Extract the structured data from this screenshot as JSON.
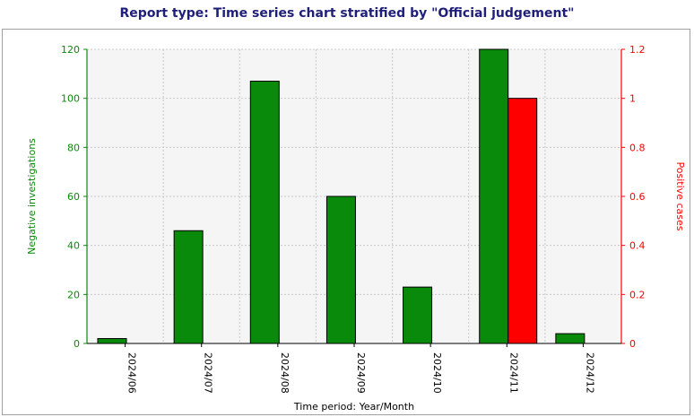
{
  "report_title": "Report type: Time series chart stratified by \"Official judgement\"",
  "colors": {
    "title": "#1f1f7a",
    "negative": "#0a8a0a",
    "positive": "#ff0000",
    "grid": "#c8c8c8",
    "plot_bg": "#f5f5f5"
  },
  "chart_data": {
    "type": "bar",
    "title": "",
    "xlabel": "Time period: Year/Month",
    "ylabel": "Negative investigations",
    "y2label": "Positive cases",
    "categories": [
      "2024/06",
      "2024/07",
      "2024/08",
      "2024/09",
      "2024/10",
      "2024/11",
      "2024/12"
    ],
    "ylim": [
      0,
      120
    ],
    "yticks": [
      "0",
      "20",
      "40",
      "60",
      "80",
      "100",
      "120"
    ],
    "y2lim": [
      0,
      1.2
    ],
    "y2ticks": [
      "0",
      "0.2",
      "0.4",
      "0.6",
      "0.8",
      "1",
      "1.2"
    ],
    "grid": true,
    "series": [
      {
        "name": "Negative investigations",
        "axis": "left",
        "color": "#0a8a0a",
        "values": [
          2,
          46,
          107,
          60,
          23,
          120,
          4
        ]
      },
      {
        "name": "Positive cases",
        "axis": "right",
        "color": "#ff0000",
        "values": [
          0,
          0,
          0,
          0,
          0,
          1,
          0
        ]
      }
    ]
  }
}
